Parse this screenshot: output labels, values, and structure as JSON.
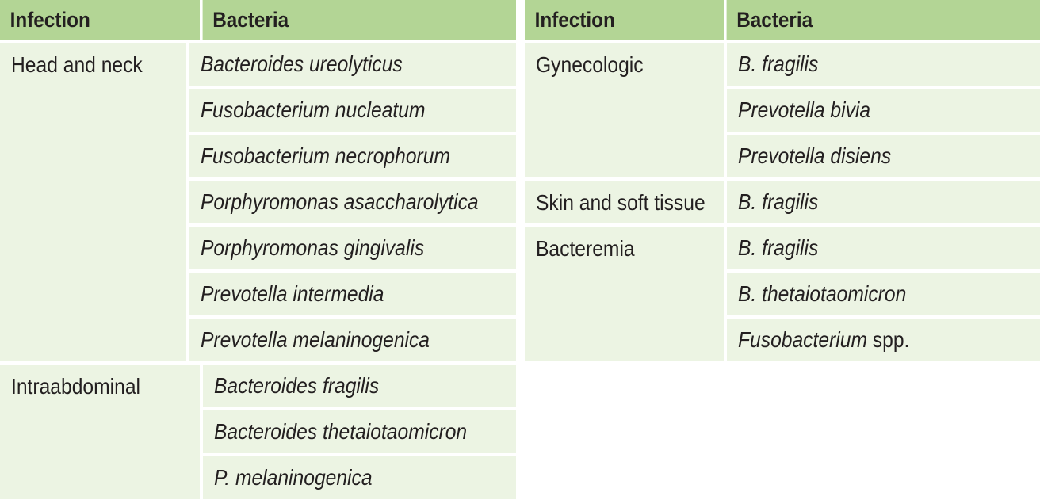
{
  "headers": {
    "infection": "Infection",
    "bacteria": "Bacteria"
  },
  "left_table": [
    {
      "infection": "Head and neck",
      "bacteria": [
        {
          "name": "Bacteroides ureolyticus",
          "suffix": ""
        },
        {
          "name": "Fusobacterium nucleatum",
          "suffix": ""
        },
        {
          "name": "Fusobacterium necrophorum",
          "suffix": ""
        },
        {
          "name": "Porphyromonas asaccharolytica",
          "suffix": ""
        },
        {
          "name": "Porphyromonas gingivalis",
          "suffix": ""
        },
        {
          "name": "Prevotella intermedia",
          "suffix": ""
        },
        {
          "name": "Prevotella melaninogenica",
          "suffix": ""
        }
      ]
    },
    {
      "infection": "Intraabdominal",
      "bacteria": [
        {
          "name": "Bacteroides fragilis",
          "suffix": ""
        },
        {
          "name": "Bacteroides thetaiotaomicron",
          "suffix": ""
        },
        {
          "name": "P. melaninogenica",
          "suffix": ""
        }
      ]
    }
  ],
  "right_table": [
    {
      "infection": "Gynecologic",
      "bacteria": [
        {
          "name": "B. fragilis",
          "suffix": ""
        },
        {
          "name": "Prevotella bivia",
          "suffix": ""
        },
        {
          "name": "Prevotella disiens",
          "suffix": ""
        }
      ]
    },
    {
      "infection": "Skin and soft tissue",
      "bacteria": [
        {
          "name": "B. fragilis",
          "suffix": ""
        }
      ]
    },
    {
      "infection": "Bacteremia",
      "bacteria": [
        {
          "name": "B. fragilis",
          "suffix": ""
        },
        {
          "name": "B. thetaiotaomicron",
          "suffix": ""
        },
        {
          "name": "Fusobacterium",
          "suffix": " spp."
        }
      ]
    }
  ],
  "colors": {
    "header_bg": "#b3d595",
    "cell_bg": "#ecf4e3",
    "text": "#231f20"
  }
}
